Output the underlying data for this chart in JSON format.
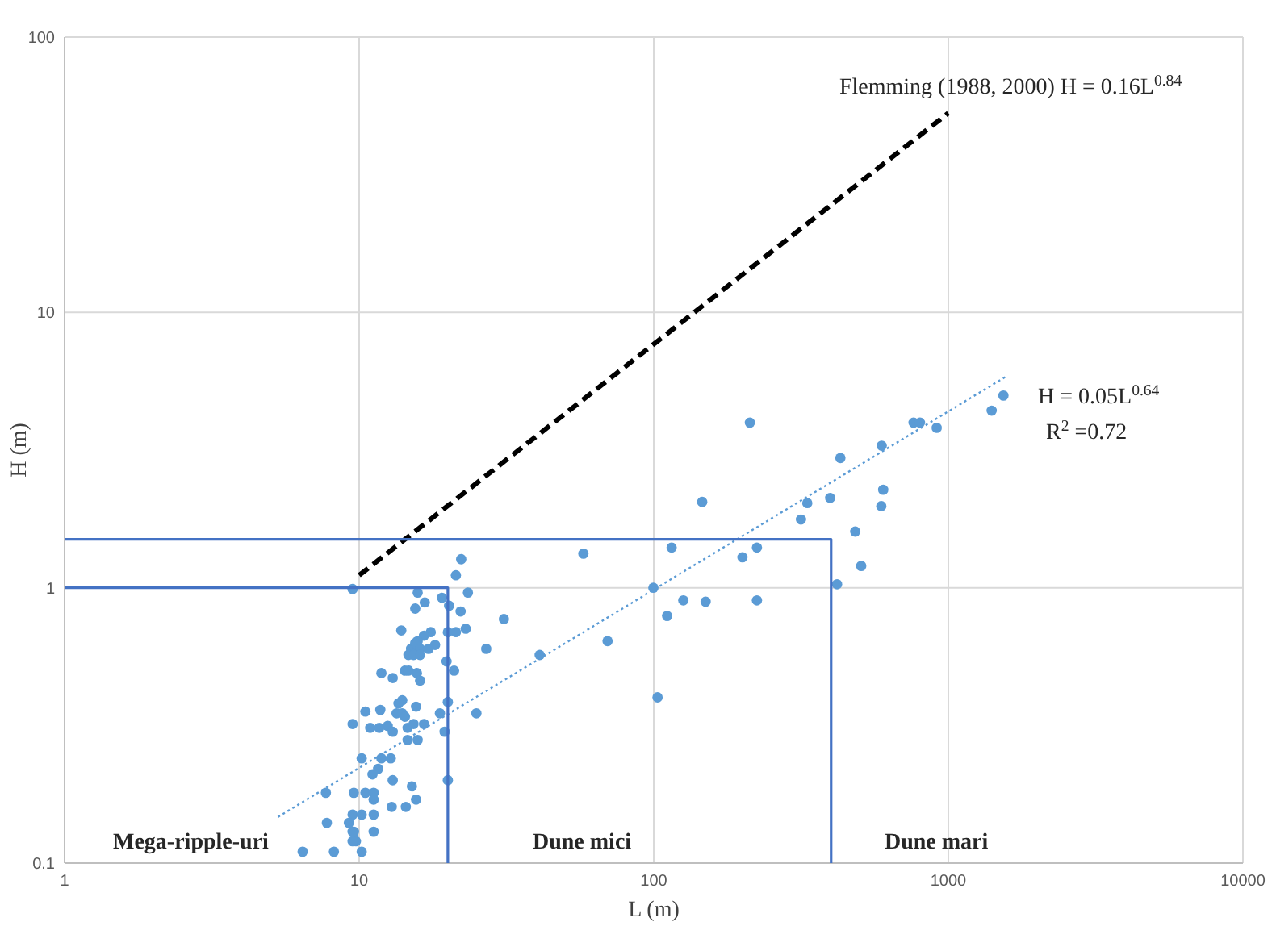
{
  "chart_data": {
    "type": "scatter",
    "xlabel": "L (m)",
    "ylabel": "H (m)",
    "log": "xy",
    "grid": true,
    "xlim": [
      1,
      10000
    ],
    "xticks": [
      1,
      10,
      100,
      1000,
      10000
    ],
    "ylim": [
      0.1,
      100
    ],
    "yticks": [
      0.1,
      1,
      10,
      100
    ],
    "series": [
      {
        "marker": "circle",
        "color": "#5b9bd5",
        "x": [
          22.2,
          21.3,
          9.5,
          15.8,
          23.4,
          19.1,
          16.7,
          15.5,
          20.2,
          22.1,
          31.0,
          13.9,
          17.5,
          16.6,
          20.0,
          21.3,
          23.0,
          15.8,
          15.0,
          15.5,
          16.1,
          18.1,
          17.2,
          27.0,
          14.7,
          15.3,
          16.1,
          41.0,
          19.8,
          14.3,
          14.7,
          11.9,
          13.0,
          15.7,
          16.1,
          21.0,
          14.0,
          13.6,
          20.0,
          15.6,
          10.5,
          11.8,
          13.4,
          14.0,
          14.3,
          18.8,
          25.0,
          9.5,
          10.9,
          11.7,
          12.5,
          13.0,
          14.6,
          15.3,
          16.6,
          19.5,
          15.8,
          14.6,
          10.2,
          11.9,
          12.8,
          11.6,
          11.1,
          13.0,
          15.1,
          20.0,
          7.71,
          9.59,
          10.5,
          11.2,
          11.2,
          12.9,
          14.4,
          15.6,
          7.77,
          9.5,
          10.2,
          11.2,
          9.23,
          9.5,
          9.6,
          9.75,
          9.5,
          11.2,
          6.43,
          8.21,
          10.2,
          212,
          146,
          57.7,
          115,
          99.7,
          111,
          126,
          150,
          200,
          224,
          224,
          69.7,
          316,
          332,
          397,
          430,
          594,
          601,
          592,
          483,
          506,
          419,
          762,
          801,
          913,
          1403,
          1538,
          103
        ],
        "values": [
          1.27,
          1.11,
          0.99,
          0.96,
          0.96,
          0.92,
          0.885,
          0.84,
          0.86,
          0.82,
          0.77,
          0.7,
          0.69,
          0.67,
          0.69,
          0.69,
          0.71,
          0.64,
          0.6,
          0.63,
          0.6,
          0.62,
          0.6,
          0.6,
          0.57,
          0.57,
          0.57,
          0.57,
          0.54,
          0.5,
          0.5,
          0.49,
          0.47,
          0.49,
          0.46,
          0.5,
          0.39,
          0.38,
          0.385,
          0.37,
          0.355,
          0.36,
          0.35,
          0.35,
          0.34,
          0.35,
          0.35,
          0.32,
          0.31,
          0.31,
          0.315,
          0.3,
          0.31,
          0.32,
          0.32,
          0.3,
          0.28,
          0.28,
          0.24,
          0.24,
          0.24,
          0.22,
          0.21,
          0.2,
          0.19,
          0.2,
          0.18,
          0.18,
          0.18,
          0.18,
          0.17,
          0.16,
          0.16,
          0.17,
          0.14,
          0.15,
          0.15,
          0.15,
          0.14,
          0.13,
          0.13,
          0.12,
          0.12,
          0.13,
          0.11,
          0.11,
          0.11,
          3.98,
          2.05,
          1.33,
          1.4,
          1.0,
          0.79,
          0.9,
          0.89,
          1.29,
          1.4,
          0.9,
          0.64,
          1.77,
          2.03,
          2.12,
          2.96,
          3.28,
          2.27,
          1.98,
          1.6,
          1.2,
          1.03,
          3.98,
          3.98,
          3.81,
          4.4,
          4.99,
          0.4
        ]
      },
      {
        "type": "line",
        "color": "#000000",
        "line_style": "dashed",
        "x": [
          10,
          1000
        ],
        "values": [
          1.11,
          53
        ]
      },
      {
        "type": "line",
        "color": "#5b9bd5",
        "line_style": "dotted",
        "x": [
          5.3,
          1578
        ],
        "values": [
          0.147,
          5.87
        ]
      },
      {
        "type": "line",
        "color": "#4472c4",
        "line_style": "solid",
        "x": [
          1,
          20,
          20
        ],
        "values": [
          1,
          1,
          0.1
        ]
      },
      {
        "type": "line",
        "color": "#4472c4",
        "line_style": "solid",
        "x": [
          1,
          400,
          400
        ],
        "values": [
          1.5,
          1.5,
          0.1
        ]
      }
    ],
    "annotations": [
      "Flemming (1988, 2000) H = 0.16L$^{0.84}$",
      "H = 0.05L$^{0.64}$",
      "R$^{2}$ =0.72",
      "Mega-ripple-uri",
      "Dune mici",
      "Dune mari"
    ]
  }
}
